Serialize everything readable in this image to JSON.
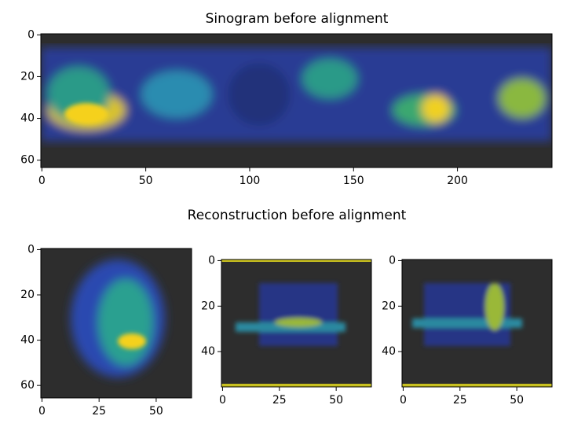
{
  "chart_data": [
    {
      "type": "image",
      "title": "Sinogram before alignment",
      "xlim": [
        -0.5,
        245.5
      ],
      "ylim": [
        63.5,
        -0.5
      ],
      "xticks": [
        0,
        50,
        100,
        150,
        200
      ],
      "yticks": [
        0,
        20,
        40,
        60
      ]
    },
    {
      "type": "image",
      "title": "Reconstruction before alignment",
      "xlim": [
        -0.5,
        65.5
      ],
      "ylim": [
        65.5,
        -0.5
      ],
      "xticks": [
        0,
        25,
        50
      ],
      "yticks": [
        0,
        20,
        40,
        60
      ]
    },
    {
      "type": "image",
      "xlim": [
        -0.5,
        65.5
      ],
      "ylim": [
        55.5,
        -0.5
      ],
      "xticks": [
        0,
        25,
        50
      ],
      "yticks": [
        0,
        20,
        40
      ]
    },
    {
      "type": "image",
      "xlim": [
        -0.5,
        65.5
      ],
      "ylim": [
        55.5,
        -0.5
      ],
      "xticks": [
        0,
        25,
        50
      ],
      "yticks": [
        0,
        20,
        40
      ]
    }
  ]
}
